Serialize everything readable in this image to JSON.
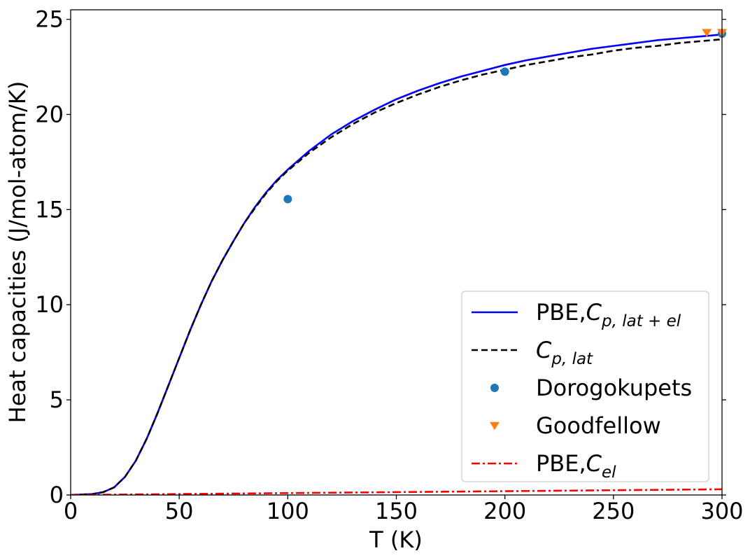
{
  "chart_data": {
    "type": "line",
    "xlabel": "T (K)",
    "ylabel": "Heat capacities (J/mol-atom/K)",
    "xlim": [
      0,
      300
    ],
    "ylim": [
      0,
      25.5
    ],
    "xticks": [
      0,
      50,
      100,
      150,
      200,
      250,
      300
    ],
    "yticks": [
      0,
      5,
      10,
      15,
      20,
      25
    ],
    "grid": false,
    "legend_position": "lower-right",
    "series": [
      {
        "name": "PBE,C_{p,lat+el}",
        "legend": {
          "main": "PBE,",
          "sym": "C",
          "sub": "p, lat + el"
        },
        "style": "solid",
        "color": "#0000ff",
        "x": [
          0,
          10,
          15,
          20,
          25,
          30,
          35,
          40,
          45,
          50,
          55,
          60,
          65,
          70,
          75,
          80,
          85,
          90,
          95,
          100,
          110,
          120,
          130,
          140,
          150,
          160,
          170,
          180,
          190,
          200,
          210,
          220,
          230,
          240,
          250,
          260,
          270,
          280,
          290,
          300
        ],
        "y": [
          0,
          0.05,
          0.15,
          0.4,
          0.95,
          1.8,
          2.95,
          4.3,
          5.75,
          7.2,
          8.65,
          10.0,
          11.25,
          12.35,
          13.35,
          14.3,
          15.15,
          15.9,
          16.55,
          17.1,
          18.1,
          18.95,
          19.65,
          20.25,
          20.8,
          21.25,
          21.65,
          22.0,
          22.3,
          22.6,
          22.85,
          23.05,
          23.25,
          23.45,
          23.6,
          23.75,
          23.9,
          24.0,
          24.1,
          24.2
        ]
      },
      {
        "name": "C_{p,lat}",
        "legend": {
          "main": "",
          "sym": "C",
          "sub": "p, lat"
        },
        "style": "dashed",
        "color": "#000000",
        "x": [
          0,
          10,
          15,
          20,
          25,
          30,
          35,
          40,
          45,
          50,
          55,
          60,
          65,
          70,
          75,
          80,
          85,
          90,
          95,
          100,
          110,
          120,
          130,
          140,
          150,
          160,
          170,
          180,
          190,
          200,
          210,
          220,
          230,
          240,
          250,
          260,
          270,
          280,
          290,
          300
        ],
        "y": [
          0,
          0.05,
          0.15,
          0.4,
          0.95,
          1.8,
          2.95,
          4.3,
          5.75,
          7.2,
          8.65,
          10.0,
          11.25,
          12.35,
          13.35,
          14.3,
          15.1,
          15.85,
          16.5,
          17.05,
          18.0,
          18.8,
          19.5,
          20.1,
          20.6,
          21.05,
          21.45,
          21.8,
          22.1,
          22.35,
          22.6,
          22.8,
          23.0,
          23.15,
          23.35,
          23.5,
          23.6,
          23.75,
          23.85,
          23.95
        ]
      },
      {
        "name": "Dorogokupets",
        "legend": {
          "main": "Dorogokupets",
          "sym": "",
          "sub": ""
        },
        "style": "marker-circle",
        "color": "#1f77b4",
        "x": [
          100,
          200,
          300
        ],
        "y": [
          15.55,
          22.25,
          24.25
        ]
      },
      {
        "name": "Goodfellow",
        "legend": {
          "main": "Goodfellow",
          "sym": "",
          "sub": ""
        },
        "style": "marker-triangle-down",
        "color": "#ff7f0e",
        "x": [
          293,
          300
        ],
        "y": [
          24.3,
          24.3
        ]
      },
      {
        "name": "PBE,C_{el}",
        "legend": {
          "main": "PBE,",
          "sym": "C",
          "sub": "el"
        },
        "style": "dashdot",
        "color": "#ff0000",
        "x": [
          0,
          50,
          100,
          150,
          200,
          250,
          300
        ],
        "y": [
          0,
          0.05,
          0.1,
          0.15,
          0.2,
          0.25,
          0.3
        ]
      }
    ]
  }
}
